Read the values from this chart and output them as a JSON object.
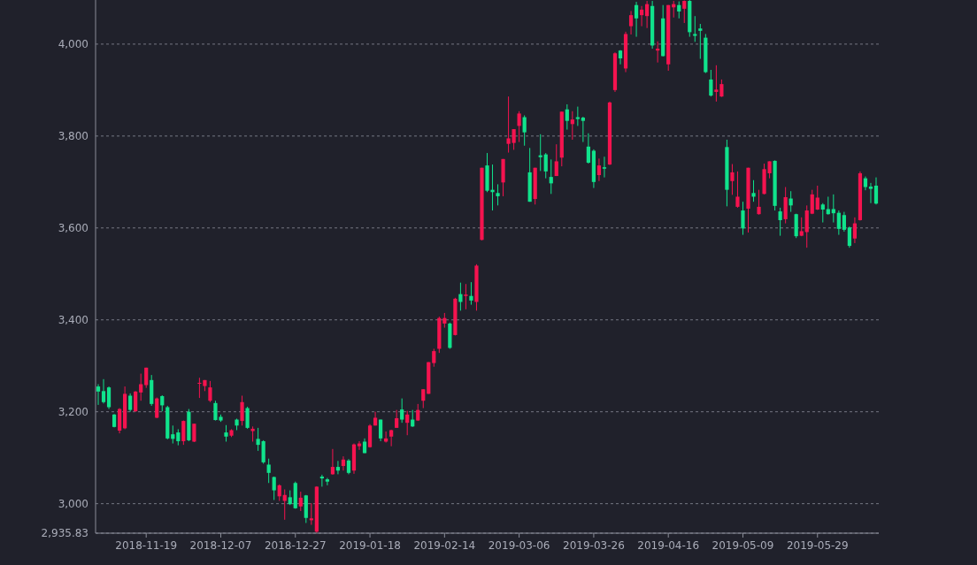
{
  "chart_data": {
    "type": "candlestick",
    "categories": [
      null,
      null,
      null,
      null,
      null,
      null,
      null,
      null,
      null,
      "2018-11-19",
      null,
      null,
      null,
      null,
      null,
      null,
      null,
      null,
      null,
      null,
      null,
      null,
      null,
      "2018-12-07",
      null,
      null,
      null,
      null,
      null,
      null,
      null,
      null,
      null,
      null,
      null,
      null,
      null,
      "2018-12-27",
      null,
      null,
      null,
      null,
      null,
      null,
      null,
      null,
      null,
      null,
      null,
      null,
      null,
      "2019-01-18",
      null,
      null,
      null,
      null,
      null,
      null,
      null,
      null,
      null,
      null,
      null,
      null,
      null,
      "2019-02-14",
      null,
      null,
      null,
      null,
      null,
      null,
      null,
      null,
      null,
      null,
      null,
      null,
      null,
      "2019-03-06",
      null,
      null,
      null,
      null,
      null,
      null,
      null,
      null,
      null,
      null,
      null,
      null,
      null,
      "2019-03-26",
      null,
      null,
      null,
      null,
      null,
      null,
      null,
      null,
      null,
      null,
      null,
      null,
      null,
      "2019-04-16",
      null,
      null,
      null,
      null,
      null,
      null,
      null,
      null,
      null,
      null,
      null,
      null,
      null,
      "2019-05-09",
      null,
      null,
      null,
      null,
      null,
      null,
      null,
      null,
      null,
      null,
      null,
      null,
      null,
      "2019-05-29",
      null,
      null,
      null,
      null,
      null,
      null,
      null,
      null,
      null,
      null,
      null
    ],
    "ohlc": [
      [
        3255,
        3260,
        3215,
        3244
      ],
      [
        3245,
        3271,
        3218,
        3221
      ],
      [
        3253,
        3255,
        3206,
        3210
      ],
      [
        3194,
        3195,
        3166,
        3167
      ],
      [
        3159,
        3208,
        3153,
        3206
      ],
      [
        3164,
        3255,
        3162,
        3239
      ],
      [
        3235,
        3240,
        3200,
        3204
      ],
      [
        3201,
        3245,
        3200,
        3244
      ],
      [
        3242,
        3283,
        3224,
        3260
      ],
      [
        3258,
        3296,
        3252,
        3296
      ],
      [
        3269,
        3280,
        3213,
        3217
      ],
      [
        3187,
        3231,
        3186,
        3229
      ],
      [
        3234,
        3236,
        3201,
        3214
      ],
      [
        3210,
        3213,
        3140,
        3142
      ],
      [
        3151,
        3170,
        3131,
        3141
      ],
      [
        3155,
        3162,
        3127,
        3136
      ],
      [
        3136,
        3181,
        3128,
        3180
      ],
      [
        3200,
        3206,
        3136,
        3138
      ],
      [
        3135,
        3174,
        3134,
        3174
      ],
      [
        3261,
        3274,
        3230,
        3263
      ],
      [
        3256,
        3269,
        3245,
        3269
      ],
      [
        3224,
        3267,
        3221,
        3253
      ],
      [
        3219,
        3224,
        3181,
        3182
      ],
      [
        3189,
        3194,
        3178,
        3181
      ],
      [
        3155,
        3171,
        3135,
        3146
      ],
      [
        3148,
        3162,
        3145,
        3160
      ],
      [
        3183,
        3185,
        3160,
        3170
      ],
      [
        3180,
        3235,
        3170,
        3221
      ],
      [
        3208,
        3211,
        3163,
        3165
      ],
      [
        3158,
        3168,
        3135,
        3163
      ],
      [
        3141,
        3165,
        3115,
        3128
      ],
      [
        3136,
        3138,
        3087,
        3090
      ],
      [
        3085,
        3098,
        3045,
        3067
      ],
      [
        3058,
        3059,
        3008,
        3029
      ],
      [
        3016,
        3042,
        3006,
        3040
      ],
      [
        3006,
        3031,
        2965,
        3019
      ],
      [
        3014,
        3029,
        2997,
        2999
      ],
      [
        3045,
        3048,
        2989,
        2990
      ],
      [
        2994,
        3026,
        2984,
        3013
      ],
      [
        3018,
        3019,
        2958,
        2969
      ],
      [
        2964,
        3001,
        2954,
        2968
      ],
      [
        2939,
        3038,
        2936,
        3037
      ],
      [
        3059,
        3063,
        3037,
        3055
      ],
      [
        3053,
        3056,
        3040,
        3048
      ],
      [
        3064,
        3119,
        3063,
        3080
      ],
      [
        3080,
        3093,
        3064,
        3072
      ],
      [
        3082,
        3103,
        3072,
        3096
      ],
      [
        3094,
        3097,
        3064,
        3067
      ],
      [
        3072,
        3131,
        3065,
        3129
      ],
      [
        3125,
        3136,
        3117,
        3131
      ],
      [
        3135,
        3142,
        3110,
        3110
      ],
      [
        3123,
        3173,
        3122,
        3170
      ],
      [
        3170,
        3200,
        3170,
        3187
      ],
      [
        3183,
        3183,
        3136,
        3142
      ],
      [
        3135,
        3157,
        3133,
        3142
      ],
      [
        3146,
        3161,
        3125,
        3160
      ],
      [
        3165,
        3204,
        3165,
        3186
      ],
      [
        3205,
        3229,
        3176,
        3183
      ],
      [
        3176,
        3202,
        3149,
        3194
      ],
      [
        3183,
        3204,
        3167,
        3168
      ],
      [
        3181,
        3217,
        3180,
        3204
      ],
      [
        3224,
        3249,
        3208,
        3249
      ],
      [
        3239,
        3308,
        3239,
        3308
      ],
      [
        3306,
        3337,
        3298,
        3332
      ],
      [
        3337,
        3407,
        3328,
        3404
      ],
      [
        3392,
        3415,
        3383,
        3404
      ],
      [
        3392,
        3394,
        3337,
        3339
      ],
      [
        3367,
        3448,
        3366,
        3446
      ],
      [
        3456,
        3481,
        3420,
        3439
      ],
      [
        3452,
        3478,
        3423,
        3455
      ],
      [
        3452,
        3482,
        3433,
        3442
      ],
      [
        3439,
        3521,
        3420,
        3518
      ],
      [
        3574,
        3731,
        3573,
        3731
      ],
      [
        3736,
        3763,
        3678,
        3681
      ],
      [
        3683,
        3738,
        3638,
        3678
      ],
      [
        3676,
        3695,
        3649,
        3669
      ],
      [
        3699,
        3750,
        3669,
        3750
      ],
      [
        3783,
        3886,
        3764,
        3795
      ],
      [
        3785,
        3815,
        3770,
        3815
      ],
      [
        3822,
        3854,
        3787,
        3849
      ],
      [
        3841,
        3845,
        3779,
        3808
      ],
      [
        3721,
        3774,
        3657,
        3657
      ],
      [
        3663,
        3731,
        3651,
        3731
      ],
      [
        3758,
        3804,
        3724,
        3754
      ],
      [
        3760,
        3763,
        3708,
        3723
      ],
      [
        3711,
        3749,
        3674,
        3697
      ],
      [
        3713,
        3782,
        3713,
        3745
      ],
      [
        3753,
        3853,
        3734,
        3853
      ],
      [
        3858,
        3869,
        3814,
        3833
      ],
      [
        3826,
        3854,
        3792,
        3836
      ],
      [
        3841,
        3864,
        3822,
        3837
      ],
      [
        3840,
        3842,
        3787,
        3833
      ],
      [
        3777,
        3806,
        3740,
        3742
      ],
      [
        3768,
        3771,
        3687,
        3700
      ],
      [
        3715,
        3751,
        3702,
        3736
      ],
      [
        3732,
        3755,
        3710,
        3729
      ],
      [
        3738,
        3875,
        3737,
        3873
      ],
      [
        3900,
        3982,
        3896,
        3980
      ],
      [
        3986,
        3987,
        3956,
        3969
      ],
      [
        3947,
        4027,
        3939,
        4022
      ],
      [
        4039,
        4072,
        4021,
        4063
      ],
      [
        4085,
        4092,
        4016,
        4056
      ],
      [
        4063,
        4083,
        4039,
        4075
      ],
      [
        4061,
        4094,
        4035,
        4087
      ],
      [
        4083,
        4094,
        3990,
        3997
      ],
      [
        3986,
        4006,
        3960,
        3990
      ],
      [
        4056,
        4085,
        3973,
        3974
      ],
      [
        3956,
        4085,
        3942,
        4085
      ],
      [
        4080,
        4094,
        4058,
        4087
      ],
      [
        4085,
        4093,
        4056,
        4071
      ],
      [
        4077,
        4095,
        4046,
        4094
      ],
      [
        4094,
        4096,
        4016,
        4026
      ],
      [
        4022,
        4061,
        4005,
        4018
      ],
      [
        4034,
        4044,
        3968,
        4029
      ],
      [
        4014,
        4022,
        3937,
        3939
      ],
      [
        3923,
        3944,
        3886,
        3888
      ],
      [
        3896,
        3954,
        3875,
        3901
      ],
      [
        3886,
        3923,
        3885,
        3913
      ],
      [
        3776,
        3792,
        3647,
        3683
      ],
      [
        3702,
        3739,
        3672,
        3721
      ],
      [
        3646,
        3723,
        3644,
        3668
      ],
      [
        3638,
        3657,
        3585,
        3599
      ],
      [
        3642,
        3731,
        3590,
        3731
      ],
      [
        3676,
        3704,
        3657,
        3668
      ],
      [
        3630,
        3683,
        3629,
        3646
      ],
      [
        3674,
        3740,
        3673,
        3728
      ],
      [
        3719,
        3745,
        3708,
        3745
      ],
      [
        3746,
        3747,
        3638,
        3648
      ],
      [
        3636,
        3644,
        3583,
        3617
      ],
      [
        3619,
        3689,
        3610,
        3667
      ],
      [
        3664,
        3680,
        3635,
        3649
      ],
      [
        3630,
        3631,
        3578,
        3582
      ],
      [
        3583,
        3623,
        3582,
        3593
      ],
      [
        3591,
        3649,
        3557,
        3638
      ],
      [
        3631,
        3683,
        3630,
        3673
      ],
      [
        3640,
        3692,
        3639,
        3666
      ],
      [
        3651,
        3654,
        3612,
        3640
      ],
      [
        3641,
        3668,
        3629,
        3630
      ],
      [
        3641,
        3673,
        3612,
        3632
      ],
      [
        3633,
        3638,
        3585,
        3598
      ],
      [
        3628,
        3635,
        3592,
        3596
      ],
      [
        3601,
        3603,
        3557,
        3561
      ],
      [
        3577,
        3623,
        3567,
        3610
      ],
      [
        3617,
        3723,
        3616,
        3719
      ],
      [
        3708,
        3712,
        3682,
        3689
      ],
      [
        3690,
        3698,
        3654,
        3685
      ],
      [
        3692,
        3710,
        3651,
        3653
      ]
    ],
    "colors": [
      "#10e38c",
      "#10e38c",
      "#10e38c",
      "#10e38c",
      "#f5134f",
      "#f5134f",
      "#10e38c",
      "#f5134f",
      "#f5134f",
      "#f5134f",
      "#10e38c",
      "#f5134f",
      "#10e38c",
      "#10e38c",
      "#10e38c",
      "#10e38c",
      "#f5134f",
      "#10e38c",
      "#f5134f",
      "#f5134f",
      "#f5134f",
      "#f5134f",
      "#10e38c",
      "#10e38c",
      "#10e38c",
      "#f5134f",
      "#10e38c",
      "#f5134f",
      "#10e38c",
      "#f5134f",
      "#10e38c",
      "#10e38c",
      "#10e38c",
      "#10e38c",
      "#f5134f",
      "#f5134f",
      "#10e38c",
      "#10e38c",
      "#f5134f",
      "#10e38c",
      "#f5134f",
      "#f5134f",
      "#10e38c",
      "#10e38c",
      "#f5134f",
      "#10e38c",
      "#f5134f",
      "#10e38c",
      "#f5134f",
      "#f5134f",
      "#10e38c",
      "#f5134f",
      "#f5134f",
      "#10e38c",
      "#f5134f",
      "#f5134f",
      "#f5134f",
      "#10e38c",
      "#f5134f",
      "#10e38c",
      "#f5134f",
      "#f5134f",
      "#f5134f",
      "#f5134f",
      "#f5134f",
      "#f5134f",
      "#10e38c",
      "#f5134f",
      "#10e38c",
      "#f5134f",
      "#10e38c",
      "#f5134f",
      "#f5134f",
      "#10e38c",
      "#10e38c",
      "#10e38c",
      "#f5134f",
      "#f5134f",
      "#f5134f",
      "#f5134f",
      "#10e38c",
      "#10e38c",
      "#f5134f",
      "#10e38c",
      "#10e38c",
      "#10e38c",
      "#f5134f",
      "#f5134f",
      "#10e38c",
      "#f5134f",
      "#10e38c",
      "#10e38c",
      "#10e38c",
      "#10e38c",
      "#f5134f",
      "#10e38c",
      "#f5134f",
      "#f5134f",
      "#10e38c",
      "#f5134f",
      "#f5134f",
      "#10e38c",
      "#f5134f",
      "#f5134f",
      "#10e38c",
      "#f5134f",
      "#10e38c",
      "#f5134f",
      "#f5134f",
      "#10e38c",
      "#f5134f",
      "#10e38c",
      "#10e38c",
      "#10e38c",
      "#10e38c",
      "#10e38c",
      "#f5134f",
      "#f5134f",
      "#10e38c",
      "#f5134f",
      "#f5134f",
      "#10e38c",
      "#f5134f",
      "#10e38c",
      "#f5134f",
      "#f5134f",
      "#f5134f",
      "#10e38c",
      "#10e38c",
      "#f5134f",
      "#10e38c",
      "#10e38c",
      "#f5134f",
      "#f5134f",
      "#f5134f",
      "#f5134f",
      "#10e38c",
      "#10e38c",
      "#10e38c",
      "#10e38c",
      "#10e38c",
      "#10e38c",
      "#f5134f",
      "#f5134f",
      "#10e38c",
      "#10e38c",
      "#10e38c"
    ],
    "ylim": [
      2935.83,
      4096
    ],
    "yticks": [
      {
        "value": 2935.83,
        "label": "2,935.83"
      },
      {
        "value": 3000,
        "label": "3,000"
      },
      {
        "value": 3200,
        "label": "3,200"
      },
      {
        "value": 3400,
        "label": "3,400"
      },
      {
        "value": 3600,
        "label": "3,600"
      },
      {
        "value": 3800,
        "label": "3,800"
      },
      {
        "value": 4000,
        "label": "4,000"
      }
    ],
    "grid": "y"
  }
}
